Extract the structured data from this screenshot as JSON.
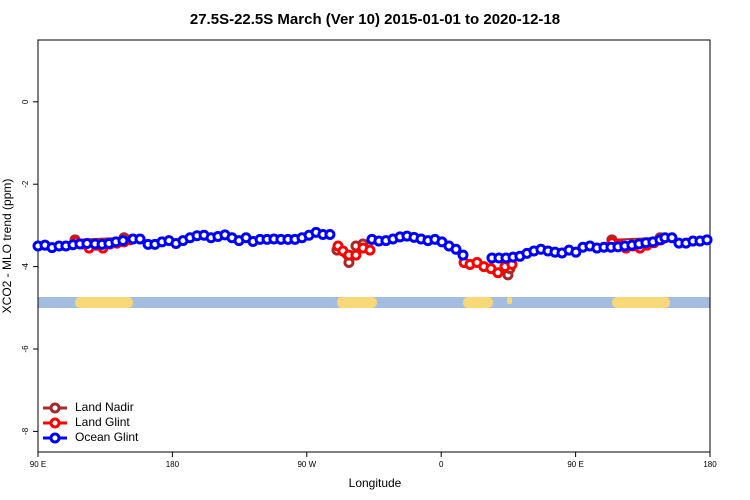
{
  "chart_data": {
    "type": "line",
    "title": "27.5S-22.5S March (Ver 10)   2015-01-01 to 2020-12-18",
    "x_label": "Longitude",
    "y_label": "XCO2 - MLO trend (ppm)",
    "xlim": [
      90,
      540
    ],
    "xticks": [
      {
        "value": 90,
        "label": "90 E"
      },
      {
        "value": 180,
        "label": "180"
      },
      {
        "value": 270,
        "label": "90 W"
      },
      {
        "value": 360,
        "label": "0"
      },
      {
        "value": 450,
        "label": "90 E"
      },
      {
        "value": 540,
        "label": "180"
      }
    ],
    "ylim": [
      -8.5,
      1.5
    ],
    "yticks": [
      0,
      -2,
      -4,
      -6,
      -8
    ],
    "legend": "bottom-left",
    "series": [
      {
        "name": "Land Nadir",
        "color": "#a52a2a",
        "x": [
          114.8,
          147.6,
          200,
          290.2,
          298.2,
          302.9,
          307.6,
          400,
          404.7,
          406,
          440,
          474.3,
          506.5
        ],
        "values": [
          -3.35,
          -3.3,
          null,
          -3.6,
          -3.9,
          -3.5,
          -3.45,
          null,
          -4.2,
          -4.05,
          null,
          -3.35,
          -3.3
        ]
      },
      {
        "name": "Land Glint",
        "color": "#ff0000",
        "x": [
          114.8,
          119.5,
          124.2,
          128.8,
          133.5,
          138.2,
          142.9,
          147.6,
          151.6,
          200,
          290.9,
          294.2,
          298.2,
          302.9,
          307.6,
          312.3,
          340,
          375.3,
          379.3,
          384,
          388.6,
          393.3,
          398,
          402.7,
          407.4,
          440,
          474.3,
          479,
          483.7,
          488.4,
          493.1,
          497.8,
          502.5,
          507.2
        ],
        "values": [
          -3.4,
          -3.45,
          -3.55,
          -3.48,
          -3.55,
          -3.45,
          -3.43,
          -3.4,
          -3.35,
          null,
          -3.5,
          -3.62,
          -3.72,
          -3.72,
          -3.55,
          -3.6,
          null,
          -3.9,
          -3.95,
          -3.9,
          -4.0,
          -4.05,
          -4.15,
          -4.0,
          -3.95,
          null,
          -3.42,
          -3.45,
          -3.55,
          -3.5,
          -3.55,
          -3.48,
          -3.42,
          -3.35
        ]
      },
      {
        "name": "Ocean Glint",
        "color": "#0000ff",
        "x": [
          90,
          94.7,
          99.4,
          104.1,
          108.7,
          113.4,
          118.1,
          122.8,
          128.2,
          132.9,
          137.5,
          142.2,
          146.9,
          153.6,
          158.3,
          163.7,
          168.3,
          173,
          177.7,
          182.4,
          187.1,
          191.8,
          196.5,
          201.2,
          205.9,
          210.5,
          215.2,
          219.9,
          224.6,
          229.3,
          234,
          238.7,
          243.4,
          248,
          252.7,
          257.4,
          262.1,
          266.8,
          271.5,
          276.2,
          280.8,
          285.5,
          300,
          313.6,
          318.3,
          323,
          327.7,
          332.4,
          337.1,
          341.8,
          346.5,
          351.1,
          355.8,
          360.5,
          365.2,
          369.9,
          374.6,
          385,
          394,
          398.7,
          403.4,
          408.1,
          412.7,
          417.4,
          422.1,
          426.8,
          431.5,
          436.2,
          440.9,
          445.6,
          450.2,
          454.9,
          459.6,
          464.3,
          469,
          473.7,
          478.4,
          483,
          487.7,
          492.4,
          497.1,
          501.8,
          506.5,
          509.8,
          514.5,
          519.2,
          523.9,
          528.6,
          533.3,
          538
        ],
        "values": [
          -3.5,
          -3.48,
          -3.54,
          -3.5,
          -3.5,
          -3.47,
          -3.45,
          -3.44,
          -3.45,
          -3.46,
          -3.44,
          -3.4,
          -3.37,
          -3.33,
          -3.33,
          -3.46,
          -3.46,
          -3.4,
          -3.37,
          -3.44,
          -3.37,
          -3.3,
          -3.25,
          -3.24,
          -3.3,
          -3.27,
          -3.23,
          -3.3,
          -3.37,
          -3.3,
          -3.39,
          -3.34,
          -3.34,
          -3.33,
          -3.34,
          -3.34,
          -3.34,
          -3.3,
          -3.24,
          -3.17,
          -3.22,
          -3.22,
          null,
          -3.34,
          -3.38,
          -3.37,
          -3.33,
          -3.28,
          -3.26,
          -3.29,
          -3.33,
          -3.37,
          -3.34,
          -3.4,
          -3.5,
          -3.58,
          -3.72,
          null,
          -3.79,
          -3.79,
          -3.79,
          -3.77,
          -3.75,
          -3.68,
          -3.62,
          -3.58,
          -3.62,
          -3.65,
          -3.67,
          -3.6,
          -3.65,
          -3.53,
          -3.5,
          -3.55,
          -3.53,
          -3.53,
          -3.52,
          -3.5,
          -3.48,
          -3.45,
          -3.42,
          -3.4,
          -3.35,
          -3.3,
          -3.3,
          -3.43,
          -3.43,
          -3.38,
          -3.38,
          -3.35
        ]
      }
    ]
  }
}
